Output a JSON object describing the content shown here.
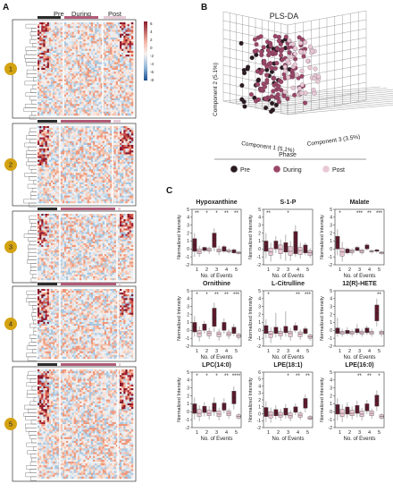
{
  "panels": {
    "A": "A",
    "B": "B",
    "C": "C"
  },
  "heatmap": {
    "phase_labels": [
      "Pre",
      "During",
      "Post"
    ],
    "phase_colors": {
      "Pre": "#2b2b2b",
      "During": "#b05a78",
      "Post": "#e6c9d6"
    },
    "colorbar_ticks": [
      "6",
      "4",
      "2",
      "0",
      "-2",
      "-4",
      "-6",
      "-8"
    ],
    "cluster_badges": [
      "1",
      "2",
      "3",
      "4",
      "5"
    ],
    "badge_color": "#d4a312",
    "colorbar_colors": {
      "high": "#8b1a2b",
      "mid": "#f6f1ef",
      "low": "#1c4f8f"
    }
  },
  "plsda": {
    "title": "PLS-DA",
    "axis_labels": {
      "y": "Component  2 (5.1%)",
      "x1": "Component  1 (5.1%)",
      "x2": "Component 3 (3.5%)"
    },
    "legend_title": "Phase",
    "legend_items": [
      {
        "label": "Pre",
        "color": "#2b1a22"
      },
      {
        "label": "During",
        "color": "#9b4668"
      },
      {
        "label": "Post",
        "color": "#e9c8d6"
      }
    ]
  },
  "chart_data": [
    {
      "type": "box",
      "title": "Hypoxanthine",
      "xlabel": "No. of Events",
      "ylabel": "Normalized Intensity",
      "categories": [
        "1",
        "2",
        "3",
        "4",
        "5"
      ],
      "yticks": [
        "-2",
        "-1",
        "0",
        "1",
        "2",
        "3",
        "4",
        "5"
      ],
      "ylim": [
        -2,
        5
      ],
      "significance": [
        "**",
        "*",
        "*",
        "**",
        "**"
      ],
      "pre": [
        {
          "q1": -0.3,
          "med": 0.5,
          "q3": 1.3,
          "lo": -1.0,
          "hi": 2.0
        },
        {
          "q1": -0.2,
          "med": 0,
          "q3": 0.2,
          "lo": -0.4,
          "hi": 0.3
        },
        {
          "q1": 0.2,
          "med": 1.1,
          "q3": 2.0,
          "lo": -0.3,
          "hi": 2.6
        },
        {
          "q1": -0.3,
          "med": 0,
          "q3": 0.3,
          "lo": -0.5,
          "hi": 0.5
        },
        {
          "q1": -0.5,
          "med": -0.3,
          "q3": -0.1,
          "lo": -0.6,
          "hi": 0.1
        }
      ],
      "post": [
        {
          "q1": -0.6,
          "med": -0.3,
          "q3": 0,
          "lo": -1.0,
          "hi": 0.4
        },
        {
          "q1": -0.3,
          "med": -0.1,
          "q3": 0.1,
          "lo": -0.6,
          "hi": 0.3
        },
        {
          "q1": -0.4,
          "med": -0.2,
          "q3": 0,
          "lo": -0.8,
          "hi": 0.4
        },
        {
          "q1": -0.4,
          "med": -0.3,
          "q3": -0.1,
          "lo": -0.6,
          "hi": 0.1
        },
        {
          "q1": -0.6,
          "med": -0.5,
          "q3": -0.4,
          "lo": -0.7,
          "hi": -0.3
        }
      ]
    },
    {
      "type": "box",
      "title": "S-1-P",
      "xlabel": "No. of Events",
      "ylabel": "Normalized Intensity",
      "categories": [
        "1",
        "2",
        "3",
        "4",
        "5"
      ],
      "yticks": [
        "-2",
        "-1",
        "0",
        "1",
        "2",
        "3",
        "4",
        "5"
      ],
      "ylim": [
        -2,
        5
      ],
      "significance": [
        "**",
        "",
        "*",
        "",
        ""
      ],
      "pre": [
        {
          "q1": -0.3,
          "med": 0.3,
          "q3": 1.0,
          "lo": -1.2,
          "hi": 2.0
        },
        {
          "q1": 0,
          "med": 0.6,
          "q3": 1.0,
          "lo": -0.5,
          "hi": 1.6
        },
        {
          "q1": -0.4,
          "med": 0.3,
          "q3": 0.8,
          "lo": -1.5,
          "hi": 1.8
        },
        {
          "q1": -0.6,
          "med": 0.4,
          "q3": 2.2,
          "lo": -1.0,
          "hi": 3.0
        },
        {
          "q1": -0.5,
          "med": -0.2,
          "q3": 0.5,
          "lo": -0.8,
          "hi": 0.8
        }
      ],
      "post": [
        {
          "q1": -0.8,
          "med": -0.4,
          "q3": 0.1,
          "lo": -1.6,
          "hi": 0.8
        },
        {
          "q1": -0.6,
          "med": 0,
          "q3": 0.5,
          "lo": -1.3,
          "hi": 1.2
        },
        {
          "q1": -0.8,
          "med": -0.3,
          "q3": 0.3,
          "lo": -1.5,
          "hi": 1.0
        },
        {
          "q1": -0.7,
          "med": -0.2,
          "q3": 0.2,
          "lo": -1.2,
          "hi": 0.8
        },
        {
          "q1": -0.8,
          "med": -0.5,
          "q3": -0.2,
          "lo": -1.1,
          "hi": 0.1
        }
      ]
    },
    {
      "type": "box",
      "title": "Malate",
      "xlabel": "No. of Events",
      "ylabel": "Normalized Intensity",
      "categories": [
        "1",
        "2",
        "3",
        "4",
        "5"
      ],
      "yticks": [
        "-2",
        "-1",
        "0",
        "1",
        "2",
        "3",
        "4",
        "5"
      ],
      "ylim": [
        -2,
        5
      ],
      "significance": [
        "*",
        "",
        "***",
        "**",
        "***"
      ],
      "pre": [
        {
          "q1": 0,
          "med": 0.8,
          "q3": 1.6,
          "lo": -0.8,
          "hi": 2.5
        },
        {
          "q1": -0.5,
          "med": -0.3,
          "q3": 0,
          "lo": -0.7,
          "hi": 0.2
        },
        {
          "q1": -0.2,
          "med": 0,
          "q3": 0.2,
          "lo": -0.3,
          "hi": 0.4
        },
        {
          "q1": 0,
          "med": 0.2,
          "q3": 0.5,
          "lo": -0.2,
          "hi": 0.7
        },
        {
          "q1": -0.3,
          "med": -0.2,
          "q3": -0.1,
          "lo": -0.5,
          "hi": 0
        }
      ],
      "post": [
        {
          "q1": -0.9,
          "med": -0.4,
          "q3": 0.1,
          "lo": -1.6,
          "hi": 0.9
        },
        {
          "q1": -0.5,
          "med": -0.3,
          "q3": -0.1,
          "lo": -0.8,
          "hi": 0.1
        },
        {
          "q1": -0.5,
          "med": -0.3,
          "q3": -0.1,
          "lo": -0.7,
          "hi": 0
        },
        {
          "q1": -0.4,
          "med": -0.3,
          "q3": -0.2,
          "lo": -0.6,
          "hi": -0.1
        },
        {
          "q1": -0.6,
          "med": -0.5,
          "q3": -0.4,
          "lo": -0.7,
          "hi": -0.3
        }
      ]
    },
    {
      "type": "box",
      "title": "Ornithine",
      "xlabel": "No. of Events",
      "ylabel": "Normalized Intensity",
      "categories": [
        "1",
        "2",
        "3",
        "4",
        "5"
      ],
      "yticks": [
        "-2",
        "-1",
        "0",
        "1",
        "2",
        "3",
        "4",
        "5"
      ],
      "ylim": [
        -2,
        5
      ],
      "significance": [
        "*",
        "*",
        "**",
        "**",
        "***"
      ],
      "pre": [
        {
          "q1": -0.2,
          "med": 0.4,
          "q3": 1.0,
          "lo": -0.8,
          "hi": 1.8
        },
        {
          "q1": 0,
          "med": 0.4,
          "q3": 0.8,
          "lo": -0.4,
          "hi": 1.2
        },
        {
          "q1": 0.5,
          "med": 1.5,
          "q3": 2.8,
          "lo": -0.2,
          "hi": 3.5
        },
        {
          "q1": 0,
          "med": 0.4,
          "q3": 1.0,
          "lo": -0.4,
          "hi": 1.5
        },
        {
          "q1": -0.4,
          "med": 0.1,
          "q3": 0.4,
          "lo": -0.7,
          "hi": 0.8
        }
      ],
      "post": [
        {
          "q1": -0.8,
          "med": -0.4,
          "q3": 0,
          "lo": -1.4,
          "hi": 0.5
        },
        {
          "q1": -0.7,
          "med": -0.4,
          "q3": -0.1,
          "lo": -1.1,
          "hi": 0.3
        },
        {
          "q1": -0.8,
          "med": -0.5,
          "q3": -0.2,
          "lo": -1.3,
          "hi": 0.2
        },
        {
          "q1": -0.7,
          "med": -0.5,
          "q3": -0.2,
          "lo": -1.1,
          "hi": 0.1
        },
        {
          "q1": -0.9,
          "med": -0.7,
          "q3": -0.5,
          "lo": -1.2,
          "hi": -0.3
        }
      ]
    },
    {
      "type": "box",
      "title": "L-Citrulline",
      "xlabel": "No. of Events",
      "ylabel": "Normalized Intensity",
      "categories": [
        "1",
        "2",
        "3",
        "4",
        "5"
      ],
      "yticks": [
        "-2",
        "-1",
        "0",
        "1",
        "2",
        "3",
        "4",
        "5"
      ],
      "ylim": [
        -2,
        5
      ],
      "significance": [
        "*",
        "",
        "",
        "**",
        "***"
      ],
      "pre": [
        {
          "q1": -0.4,
          "med": 0.1,
          "q3": 0.6,
          "lo": -1.0,
          "hi": 1.4
        },
        {
          "q1": -0.4,
          "med": 0,
          "q3": 0.4,
          "lo": -0.9,
          "hi": 2.2
        },
        {
          "q1": -0.3,
          "med": 0.1,
          "q3": 0.5,
          "lo": -0.8,
          "hi": 2.4
        },
        {
          "q1": 0,
          "med": 0.3,
          "q3": 0.6,
          "lo": -0.3,
          "hi": 1.0
        },
        {
          "q1": -0.4,
          "med": -0.1,
          "q3": 0.2,
          "lo": -0.6,
          "hi": 0.5
        }
      ],
      "post": [
        {
          "q1": -0.9,
          "med": -0.5,
          "q3": -0.1,
          "lo": -1.6,
          "hi": 0.4
        },
        {
          "q1": -0.7,
          "med": -0.4,
          "q3": -0.1,
          "lo": -1.2,
          "hi": 0.3
        },
        {
          "q1": -0.8,
          "med": -0.4,
          "q3": -0.1,
          "lo": -1.3,
          "hi": 0.3
        },
        {
          "q1": -0.8,
          "med": -0.5,
          "q3": -0.2,
          "lo": -1.2,
          "hi": 0.1
        },
        {
          "q1": -1.0,
          "med": -0.8,
          "q3": -0.6,
          "lo": -1.3,
          "hi": -0.4
        }
      ]
    },
    {
      "type": "box",
      "title": "12(R)-HETE",
      "xlabel": "No. of Events",
      "ylabel": "Normalized Intensity",
      "categories": [
        "1",
        "2",
        "3",
        "4",
        "5"
      ],
      "yticks": [
        "-2",
        "-1",
        "0",
        "1",
        "2",
        "3",
        "4",
        "5"
      ],
      "ylim": [
        -2,
        5
      ],
      "significance": [
        "",
        "",
        "",
        "",
        "**"
      ],
      "pre": [
        {
          "q1": -0.4,
          "med": -0.1,
          "q3": 0.3,
          "lo": -0.8,
          "hi": 1.6
        },
        {
          "q1": -0.4,
          "med": -0.2,
          "q3": 0,
          "lo": -0.6,
          "hi": 0.4
        },
        {
          "q1": -0.3,
          "med": -0.1,
          "q3": 0.2,
          "lo": -0.6,
          "hi": 0.8
        },
        {
          "q1": -0.3,
          "med": 0,
          "q3": 0.3,
          "lo": -0.6,
          "hi": 0.6
        },
        {
          "q1": 1.2,
          "med": 2.2,
          "q3": 3.2,
          "lo": 0.5,
          "hi": 4.0
        }
      ],
      "post": [
        {
          "q1": -0.5,
          "med": -0.3,
          "q3": -0.1,
          "lo": -0.8,
          "hi": 0.2
        },
        {
          "q1": -0.5,
          "med": -0.3,
          "q3": -0.1,
          "lo": -0.8,
          "hi": 0.1
        },
        {
          "q1": -0.5,
          "med": -0.3,
          "q3": -0.1,
          "lo": -0.8,
          "hi": 0.2
        },
        {
          "q1": -0.5,
          "med": -0.3,
          "q3": -0.1,
          "lo": -0.8,
          "hi": 0.2
        },
        {
          "q1": -0.5,
          "med": -0.3,
          "q3": -0.1,
          "lo": -0.8,
          "hi": 0.1
        }
      ]
    },
    {
      "type": "box",
      "title": "LPC(14:0)",
      "xlabel": "No. of Events",
      "ylabel": "Normalized Intensity",
      "categories": [
        "1",
        "2",
        "3",
        "4",
        "5"
      ],
      "yticks": [
        "-2",
        "-1",
        "0",
        "1",
        "2",
        "3",
        "4",
        "5"
      ],
      "ylim": [
        -2,
        5
      ],
      "significance": [
        "*",
        "*",
        "*",
        "**",
        "****"
      ],
      "pre": [
        {
          "q1": -0.2,
          "med": 0.4,
          "q3": 1.0,
          "lo": -1.0,
          "hi": 1.8
        },
        {
          "q1": -0.1,
          "med": 0.3,
          "q3": 0.7,
          "lo": -0.6,
          "hi": 1.2
        },
        {
          "q1": 0,
          "med": 0.5,
          "q3": 1.1,
          "lo": -0.5,
          "hi": 1.8
        },
        {
          "q1": 0.2,
          "med": 0.6,
          "q3": 1.1,
          "lo": -0.2,
          "hi": 1.7
        },
        {
          "q1": 1.0,
          "med": 1.8,
          "q3": 2.6,
          "lo": 0.3,
          "hi": 3.2
        }
      ],
      "post": [
        {
          "q1": -0.6,
          "med": -0.2,
          "q3": 0.3,
          "lo": -1.2,
          "hi": 0.8
        },
        {
          "q1": -0.5,
          "med": -0.2,
          "q3": 0.2,
          "lo": -1.0,
          "hi": 0.7
        },
        {
          "q1": -0.6,
          "med": -0.3,
          "q3": 0.1,
          "lo": -1.1,
          "hi": 0.5
        },
        {
          "q1": -0.5,
          "med": -0.2,
          "q3": 0.1,
          "lo": -0.9,
          "hi": 0.4
        },
        {
          "q1": -0.8,
          "med": -0.6,
          "q3": -0.4,
          "lo": -1.0,
          "hi": -0.2
        }
      ]
    },
    {
      "type": "box",
      "title": "LPE(18:1)",
      "xlabel": "No. of Events",
      "ylabel": "Normalized Intensity",
      "categories": [
        "1",
        "2",
        "3",
        "4",
        "5"
      ],
      "yticks": [
        "-2",
        "-1",
        "0",
        "1",
        "2",
        "3",
        "4",
        "5",
        "6"
      ],
      "ylim": [
        -2,
        6
      ],
      "significance": [
        "",
        "",
        "*",
        "**",
        "**"
      ],
      "pre": [
        {
          "q1": -0.4,
          "med": 0.2,
          "q3": 0.9,
          "lo": -1.2,
          "hi": 1.8
        },
        {
          "q1": -0.3,
          "med": 0.1,
          "q3": 0.6,
          "lo": -0.8,
          "hi": 1.2
        },
        {
          "q1": -0.2,
          "med": 0.3,
          "q3": 0.8,
          "lo": -0.7,
          "hi": 1.4
        },
        {
          "q1": 0.2,
          "med": 0.6,
          "q3": 1.0,
          "lo": -0.2,
          "hi": 1.5
        },
        {
          "q1": 0.8,
          "med": 1.5,
          "q3": 2.2,
          "lo": 0.2,
          "hi": 2.8
        }
      ],
      "post": [
        {
          "q1": -0.6,
          "med": -0.2,
          "q3": 0.3,
          "lo": -1.3,
          "hi": 0.9
        },
        {
          "q1": -0.5,
          "med": -0.2,
          "q3": 0.2,
          "lo": -1.0,
          "hi": 0.7
        },
        {
          "q1": -0.6,
          "med": -0.3,
          "q3": 0.1,
          "lo": -1.1,
          "hi": 0.5
        },
        {
          "q1": -0.5,
          "med": -0.2,
          "q3": 0.1,
          "lo": -0.9,
          "hi": 0.4
        },
        {
          "q1": -0.8,
          "med": -0.6,
          "q3": -0.4,
          "lo": -1.0,
          "hi": -0.2
        }
      ]
    },
    {
      "type": "box",
      "title": "LPE(16:0)",
      "xlabel": "No. of Events",
      "ylabel": "Normalized Intensity",
      "categories": [
        "1",
        "2",
        "3",
        "4",
        "5"
      ],
      "yticks": [
        "-2",
        "-1",
        "0",
        "1",
        "2",
        "3",
        "4",
        "5"
      ],
      "ylim": [
        -2,
        5
      ],
      "significance": [
        "",
        "",
        "**",
        "**",
        "*"
      ],
      "pre": [
        {
          "q1": -0.3,
          "med": 0.3,
          "q3": 0.9,
          "lo": -1.1,
          "hi": 1.7
        },
        {
          "q1": -0.3,
          "med": 0.1,
          "q3": 0.6,
          "lo": -0.8,
          "hi": 1.2
        },
        {
          "q1": -0.2,
          "med": 0.3,
          "q3": 0.8,
          "lo": -0.7,
          "hi": 1.4
        },
        {
          "q1": 0.1,
          "med": 0.5,
          "q3": 1.0,
          "lo": -0.3,
          "hi": 1.5
        },
        {
          "q1": 0.7,
          "med": 1.4,
          "q3": 2.1,
          "lo": 0.1,
          "hi": 2.7
        }
      ],
      "post": [
        {
          "q1": -0.6,
          "med": -0.2,
          "q3": 0.3,
          "lo": -1.3,
          "hi": 0.9
        },
        {
          "q1": -0.5,
          "med": -0.2,
          "q3": 0.2,
          "lo": -1.0,
          "hi": 0.7
        },
        {
          "q1": -0.6,
          "med": -0.3,
          "q3": 0.1,
          "lo": -1.1,
          "hi": 0.5
        },
        {
          "q1": -0.5,
          "med": -0.2,
          "q3": 0.1,
          "lo": -0.9,
          "hi": 0.4
        },
        {
          "q1": -0.8,
          "med": -0.6,
          "q3": -0.4,
          "lo": -1.0,
          "hi": -0.2
        }
      ]
    }
  ]
}
